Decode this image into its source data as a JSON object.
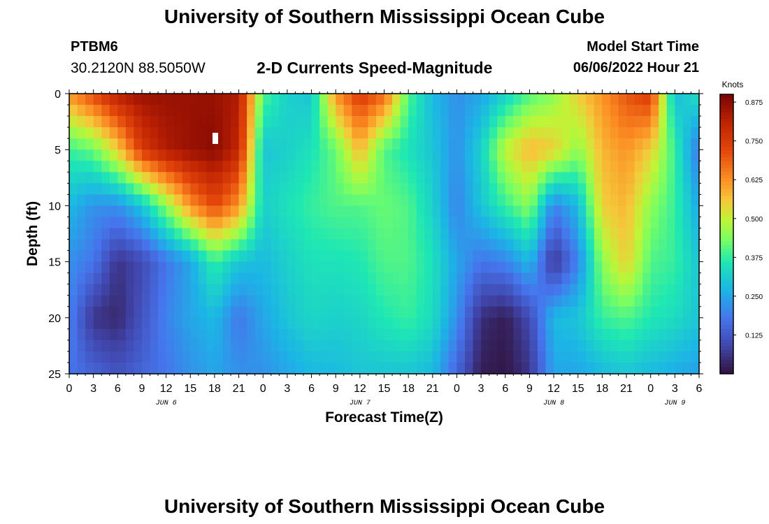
{
  "header": {
    "title": "University of Southern Mississippi Ocean Cube",
    "station": "PTBM6",
    "coords": "30.2120N  88.5050W",
    "subtitle": "2-D Currents Speed-Magnitude",
    "model_start_label": "Model Start Time",
    "model_start_value": "06/06/2022 Hour 21"
  },
  "footer": {
    "title": "University of Southern Mississippi Ocean Cube"
  },
  "chart_data": {
    "type": "heatmap",
    "title": "2-D Currents Speed-Magnitude",
    "xlabel": "Forecast Time(Z)",
    "ylabel": "Depth (ft)",
    "x_unit": "hours from Jun 6 00Z",
    "xlim": [
      0,
      78
    ],
    "ylim": [
      0,
      25
    ],
    "x_tick_values": [
      0,
      3,
      6,
      9,
      12,
      15,
      18,
      21,
      24,
      27,
      30,
      33,
      36,
      39,
      42,
      45,
      48,
      51,
      54,
      57,
      60,
      63,
      66,
      69,
      72,
      75,
      78
    ],
    "x_tick_labels": [
      "0",
      "3",
      "6",
      "9",
      "12",
      "15",
      "18",
      "21",
      "0",
      "3",
      "6",
      "9",
      "12",
      "15",
      "18",
      "21",
      "0",
      "3",
      "6",
      "9",
      "12",
      "15",
      "18",
      "21",
      "0",
      "3",
      "6"
    ],
    "y_ticks": [
      0,
      5,
      10,
      15,
      20,
      25
    ],
    "day_labels": [
      {
        "x": 12,
        "label": "JUN 6"
      },
      {
        "x": 36,
        "label": "JUN 7"
      },
      {
        "x": 60,
        "label": "JUN 8"
      },
      {
        "x": 75,
        "label": "JUN 9"
      }
    ],
    "colorbar": {
      "label": "Knots",
      "min": 0,
      "max": 0.9,
      "ticks": [
        0.125,
        0.25,
        0.375,
        0.5,
        0.625,
        0.75,
        0.875
      ],
      "tick_labels": [
        "0.125",
        "0.250",
        "0.375",
        "0.500",
        "0.625",
        "0.750",
        "0.875"
      ]
    },
    "depth_samples_ft": [
      0,
      5,
      10,
      15,
      20,
      25
    ],
    "time_samples_h": [
      0,
      3,
      6,
      9,
      12,
      15,
      18,
      21,
      24,
      27,
      30,
      33,
      36,
      39,
      42,
      45,
      48,
      51,
      54,
      57,
      60,
      63,
      66,
      69,
      72,
      75,
      78
    ],
    "values_knots": [
      [
        0.62,
        0.72,
        0.82,
        0.86,
        0.86,
        0.86,
        0.86,
        0.83,
        0.4,
        0.32,
        0.3,
        0.62,
        0.75,
        0.68,
        0.4,
        0.28,
        0.22,
        0.25,
        0.32,
        0.4,
        0.45,
        0.55,
        0.62,
        0.7,
        0.75,
        0.28,
        0.35
      ],
      [
        0.38,
        0.42,
        0.55,
        0.75,
        0.83,
        0.86,
        0.88,
        0.8,
        0.3,
        0.32,
        0.35,
        0.42,
        0.58,
        0.4,
        0.35,
        0.3,
        0.22,
        0.32,
        0.5,
        0.58,
        0.55,
        0.45,
        0.58,
        0.62,
        0.55,
        0.38,
        0.18
      ],
      [
        0.28,
        0.22,
        0.22,
        0.3,
        0.45,
        0.62,
        0.72,
        0.62,
        0.32,
        0.35,
        0.38,
        0.4,
        0.4,
        0.42,
        0.4,
        0.32,
        0.2,
        0.3,
        0.38,
        0.45,
        0.2,
        0.28,
        0.55,
        0.58,
        0.45,
        0.38,
        0.25
      ],
      [
        0.22,
        0.18,
        0.06,
        0.1,
        0.18,
        0.25,
        0.38,
        0.3,
        0.28,
        0.32,
        0.35,
        0.35,
        0.36,
        0.4,
        0.4,
        0.35,
        0.25,
        0.18,
        0.2,
        0.28,
        0.06,
        0.2,
        0.45,
        0.55,
        0.4,
        0.38,
        0.3
      ],
      [
        0.2,
        0.06,
        0.04,
        0.12,
        0.2,
        0.25,
        0.28,
        0.18,
        0.25,
        0.3,
        0.33,
        0.32,
        0.33,
        0.36,
        0.38,
        0.34,
        0.22,
        0.05,
        0.02,
        0.1,
        0.28,
        0.3,
        0.38,
        0.4,
        0.36,
        0.34,
        0.3
      ],
      [
        0.18,
        0.15,
        0.12,
        0.15,
        0.18,
        0.22,
        0.25,
        0.22,
        0.22,
        0.25,
        0.28,
        0.28,
        0.3,
        0.3,
        0.3,
        0.28,
        0.15,
        0.02,
        0.01,
        0.06,
        0.25,
        0.25,
        0.28,
        0.3,
        0.28,
        0.26,
        0.24
      ]
    ]
  }
}
